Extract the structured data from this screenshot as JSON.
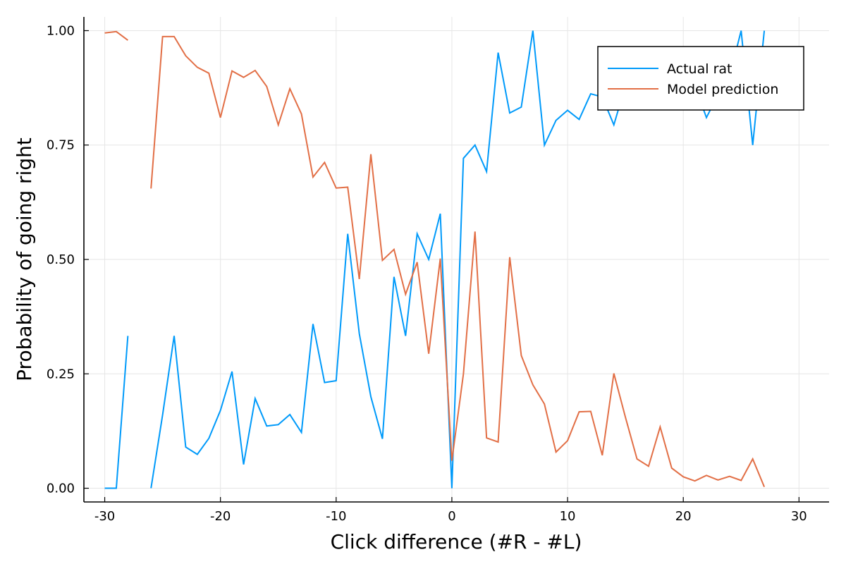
{
  "chart_data": {
    "type": "line",
    "xlabel": "Click difference (#R - #L)",
    "ylabel": "Probability of going right",
    "xlim": [
      -31.8,
      32.6
    ],
    "ylim": [
      -0.03,
      1.03
    ],
    "xticks": [
      -30,
      -20,
      -10,
      0,
      10,
      20,
      30
    ],
    "xtick_labels": [
      "-30",
      "-20",
      "-10",
      "0",
      "10",
      "20",
      "30"
    ],
    "yticks": [
      0,
      0.25,
      0.5,
      0.75,
      1
    ],
    "ytick_labels": [
      "0.00",
      "0.25",
      "0.50",
      "0.75",
      "1.00"
    ],
    "grid": true,
    "legend_position": "top-right",
    "series": [
      {
        "name": "Actual rat",
        "color": "#009AFA",
        "points": [
          [
            -30,
            0
          ],
          [
            -29,
            0
          ],
          [
            -28,
            0.333
          ],
          null,
          [
            -26,
            0
          ],
          [
            -25,
            0.16
          ],
          [
            -24,
            0.333
          ],
          [
            -23,
            0.09
          ],
          [
            -22,
            0.074
          ],
          [
            -21,
            0.109
          ],
          [
            -20,
            0.17
          ],
          [
            -19,
            0.255
          ],
          [
            -18,
            0.052
          ],
          [
            -17,
            0.196
          ],
          [
            -16,
            0.136
          ],
          [
            -15,
            0.139
          ],
          [
            -14,
            0.161
          ],
          [
            -13,
            0.122
          ],
          [
            -12,
            0.359
          ],
          [
            -11,
            0.231
          ],
          [
            -10,
            0.235
          ],
          [
            -9,
            0.556
          ],
          [
            -8,
            0.338
          ],
          [
            -7,
            0.2
          ],
          [
            -6,
            0.108
          ],
          [
            -5,
            0.462
          ],
          [
            -4,
            0.333
          ],
          [
            -3,
            0.556
          ],
          [
            -2,
            0.5
          ],
          [
            -1,
            0.6
          ],
          [
            0,
            0
          ],
          [
            1,
            0.721
          ],
          [
            2,
            0.75
          ],
          [
            3,
            0.692
          ],
          [
            4,
            0.952
          ],
          [
            5,
            0.82
          ],
          [
            6,
            0.833
          ],
          [
            7,
            1.0
          ],
          [
            8,
            0.75
          ],
          [
            9,
            0.804
          ],
          [
            10,
            0.826
          ],
          [
            11,
            0.806
          ],
          [
            12,
            0.862
          ],
          [
            13,
            0.855
          ],
          [
            14,
            0.794
          ],
          [
            15,
            0.88
          ],
          [
            16,
            0.9
          ],
          [
            17,
            0.88
          ],
          [
            18,
            0.9
          ],
          [
            19,
            0.87
          ],
          [
            20,
            0.85
          ],
          [
            21,
            0.88
          ],
          [
            22,
            0.81
          ],
          [
            23,
            0.86
          ],
          [
            24,
            0.9
          ],
          [
            25,
            1.0
          ],
          [
            26,
            0.75
          ],
          [
            27,
            1.0
          ]
        ]
      },
      {
        "name": "Model prediction",
        "color": "#E26F46",
        "points": [
          [
            -30,
            0.995
          ],
          [
            -29,
            0.998
          ],
          [
            -28,
            0.979
          ],
          null,
          [
            -26,
            0.655
          ],
          [
            -25,
            0.987
          ],
          [
            -24,
            0.987
          ],
          [
            -23,
            0.945
          ],
          [
            -22,
            0.92
          ],
          [
            -21,
            0.907
          ],
          [
            -20,
            0.81
          ],
          [
            -19,
            0.912
          ],
          [
            -18,
            0.898
          ],
          [
            -17,
            0.913
          ],
          [
            -16,
            0.878
          ],
          [
            -15,
            0.794
          ],
          [
            -14,
            0.873
          ],
          [
            -13,
            0.818
          ],
          [
            -12,
            0.68
          ],
          [
            -11,
            0.712
          ],
          [
            -10,
            0.656
          ],
          [
            -9,
            0.658
          ],
          [
            -8,
            0.457
          ],
          [
            -7,
            0.73
          ],
          [
            -6,
            0.498
          ],
          [
            -5,
            0.522
          ],
          [
            -4,
            0.424
          ],
          [
            -3,
            0.494
          ],
          [
            -2,
            0.294
          ],
          [
            -1,
            0.502
          ],
          [
            0,
            0.06
          ],
          [
            1,
            0.25
          ],
          [
            2,
            0.561
          ],
          [
            3,
            0.11
          ],
          [
            4,
            0.101
          ],
          [
            5,
            0.505
          ],
          [
            6,
            0.29
          ],
          [
            7,
            0.226
          ],
          [
            8,
            0.184
          ],
          [
            9,
            0.079
          ],
          [
            10,
            0.104
          ],
          [
            11,
            0.167
          ],
          [
            12,
            0.168
          ],
          [
            13,
            0.072
          ],
          [
            14,
            0.251
          ],
          [
            15,
            0.155
          ],
          [
            16,
            0.064
          ],
          [
            17,
            0.048
          ],
          [
            18,
            0.134
          ],
          [
            19,
            0.044
          ],
          [
            20,
            0.025
          ],
          [
            21,
            0.016
          ],
          [
            22,
            0.028
          ],
          [
            23,
            0.018
          ],
          [
            24,
            0.026
          ],
          [
            25,
            0.017
          ],
          [
            26,
            0.064
          ],
          [
            27,
            0.003
          ]
        ]
      }
    ]
  }
}
